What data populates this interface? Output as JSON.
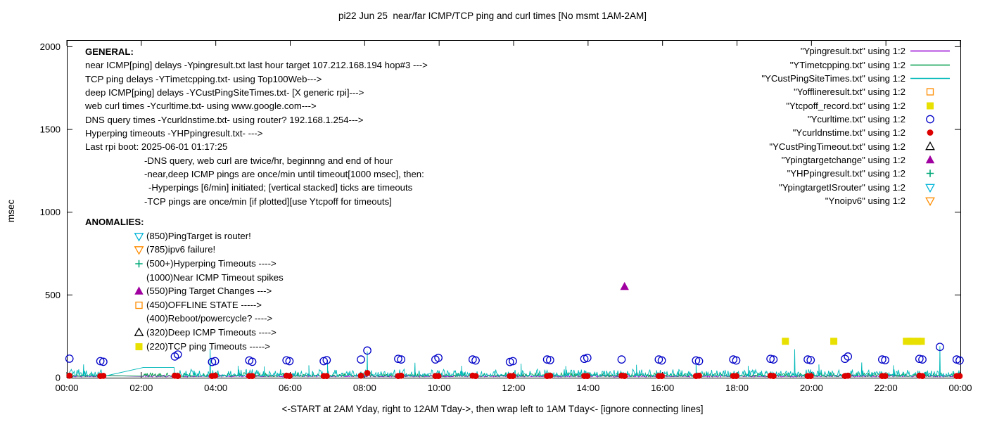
{
  "title": "pi22 Jun 25  near/far ICMP/TCP ping and curl times [No msmt 1AM-2AM]",
  "axes": {
    "ylabel": "msec",
    "xlabel": "<-START at 2AM Yday, right to 12AM Tday->, then wrap left to 1AM Tday<- [ignore connecting lines]",
    "x_ticks": [
      "00:00",
      "02:00",
      "04:00",
      "06:00",
      "08:00",
      "10:00",
      "12:00",
      "14:00",
      "16:00",
      "18:00",
      "20:00",
      "22:00",
      "00:00"
    ],
    "y_ticks": [
      "0",
      "500",
      "1000",
      "1500",
      "2000"
    ]
  },
  "general": {
    "header": "GENERAL:",
    "lines": [
      {
        "text": "near ICMP[ping] delays -Ypingresult.txt last hour target 107.212.168.194 hop#3 --->",
        "indent": 0
      },
      {
        "text": "TCP ping delays -YTimetcpping.txt- using Top100Web--->",
        "indent": 0
      },
      {
        "text": "deep ICMP[ping] delays -YCustPingSiteTimes.txt- [X generic rpi]--->",
        "indent": 0
      },
      {
        "text": "web curl times -Ycurltime.txt- using www.google.com--->",
        "indent": 0
      },
      {
        "text": "DNS query times -Ycurldnstime.txt- using router? 192.168.1.254--->",
        "indent": 0
      },
      {
        "text": "Hyperping timeouts -YHPpingresult.txt- --->",
        "indent": 0
      },
      {
        "text": "Last rpi boot: 2025-06-01 01:17:25",
        "indent": 0
      },
      {
        "text": "-DNS query, web curl are twice/hr, beginnng and end of hour",
        "indent": 1
      },
      {
        "text": "-near,deep ICMP pings are once/min until timeout[1000 msec], then:",
        "indent": 1
      },
      {
        "text": "-Hyperpings [6/min] initiated; [vertical stacked] ticks are timeouts",
        "indent": 2
      },
      {
        "text": "-TCP pings are once/min [if plotted][use Ytcpoff for timeouts]",
        "indent": 1
      }
    ]
  },
  "anomalies": {
    "header": "ANOMALIES:",
    "items": [
      {
        "marker": "triangle-down-open",
        "color": "#00b4d8",
        "text": "(850)PingTarget is router!"
      },
      {
        "marker": "triangle-down-open",
        "color": "#ff8c00",
        "text": "(785)ipv6 failure!"
      },
      {
        "marker": "plus",
        "color": "#00a878",
        "text": "(500+)Hyperping Timeouts ---->"
      },
      {
        "marker": null,
        "color": null,
        "text": "(1000)Near ICMP Timeout spikes"
      },
      {
        "marker": "triangle-up-filled",
        "color": "#a000a0",
        "text": "(550)Ping Target Changes --->"
      },
      {
        "marker": "square-open",
        "color": "#ff8c00",
        "text": "(450)OFFLINE STATE ----->"
      },
      {
        "marker": null,
        "color": null,
        "text": "(400)Reboot/powercycle? ---->"
      },
      {
        "marker": "triangle-up-open",
        "color": "#000000",
        "text": "(320)Deep ICMP Timeouts ---->"
      },
      {
        "marker": "square-filled",
        "color": "#e8e000",
        "text": "(220)TCP ping Timeouts ----->"
      }
    ]
  },
  "legend": [
    {
      "label": "\"Ypingresult.txt\" using 1:2",
      "sample": "line",
      "color": "#9400d3"
    },
    {
      "label": "\"YTimetcpping.txt\" using 1:2",
      "sample": "line",
      "color": "#009e49"
    },
    {
      "label": "\"YCustPingSiteTimes.txt\" using 1:2",
      "sample": "line",
      "color": "#00b8b8"
    },
    {
      "label": "\"Yofflineresult.txt\" using 1:2",
      "sample": "square-open",
      "color": "#ff8c00"
    },
    {
      "label": "\"Ytcpoff_record.txt\" using 1:2",
      "sample": "square-filled",
      "color": "#e8e000"
    },
    {
      "label": "\"Ycurltime.txt\" using 1:2",
      "sample": "circle-open",
      "color": "#0000c8"
    },
    {
      "label": "\"Ycurldnstime.txt\" using 1:2",
      "sample": "circle-filled",
      "color": "#dd0000"
    },
    {
      "label": "\"YCustPingTimeout.txt\" using 1:2",
      "sample": "triangle-up-open",
      "color": "#000000"
    },
    {
      "label": "\"Ypingtargetchange\" using 1:2",
      "sample": "triangle-up-filled",
      "color": "#a000a0"
    },
    {
      "label": "\"YHPpingresult.txt\" using 1:2",
      "sample": "plus",
      "color": "#00a878"
    },
    {
      "label": "\"YpingtargetISrouter\" using 1:2",
      "sample": "triangle-down-open",
      "color": "#00b4d8"
    },
    {
      "label": "\"Ynoipv6\" using 1:2",
      "sample": "triangle-down-open",
      "color": "#ff8c00"
    }
  ],
  "chart_data": {
    "type": "line",
    "title": "pi22 Jun 25  near/far ICMP/TCP ping and curl times [No msmt 1AM-2AM]",
    "xlabel": "<-START at 2AM Yday, right to 12AM Tday->, then wrap left to 1AM Tday<- [ignore connecting lines]",
    "ylabel": "msec",
    "xlim": [
      0,
      24
    ],
    "ylim": [
      0,
      2040
    ],
    "grid": false,
    "legend_position": "top-right",
    "x_tick_hours": [
      0,
      2,
      4,
      6,
      8,
      10,
      12,
      14,
      16,
      18,
      20,
      22,
      24
    ],
    "y_tick_values": [
      0,
      500,
      1000,
      1500,
      2000
    ],
    "gap_hours": [
      1.05,
      2.05
    ],
    "line_series": [
      {
        "name": "Ypingresult",
        "color": "#9400d3",
        "baseline": 4,
        "jitter": 10,
        "spikes": [],
        "plateaus": []
      },
      {
        "name": "YTimetcpping",
        "color": "#009e49",
        "baseline": 6,
        "jitter": 22,
        "spikes": [],
        "plateaus": []
      },
      {
        "name": "YCustPingSiteTimes",
        "color": "#00b8b8",
        "baseline": 8,
        "jitter": 40,
        "spikes": [
          [
            0.45,
            80
          ],
          [
            3.85,
            175
          ],
          [
            4.6,
            72
          ],
          [
            5.3,
            68
          ],
          [
            6.5,
            75
          ],
          [
            7.0,
            95
          ],
          [
            8.07,
            158
          ],
          [
            9.35,
            90
          ],
          [
            10.6,
            72
          ],
          [
            12.2,
            85
          ],
          [
            13.4,
            70
          ],
          [
            15.3,
            78
          ],
          [
            16.9,
            88
          ],
          [
            18.3,
            72
          ],
          [
            19.55,
            172
          ],
          [
            20.2,
            80
          ],
          [
            21.35,
            92
          ],
          [
            22.2,
            75
          ],
          [
            23.45,
            190
          ]
        ],
        "plateaus": [
          [
            2.05,
            2.9,
            62
          ]
        ]
      }
    ],
    "point_series": [
      {
        "name": "Ycurltime",
        "marker": "circle-open",
        "color": "#0000c8",
        "points": [
          [
            0.07,
            115
          ],
          [
            0.9,
            100
          ],
          [
            0.98,
            96
          ],
          [
            2.9,
            128
          ],
          [
            2.98,
            140
          ],
          [
            3.9,
            95
          ],
          [
            3.98,
            100
          ],
          [
            4.9,
            104
          ],
          [
            4.98,
            96
          ],
          [
            5.9,
            105
          ],
          [
            5.98,
            100
          ],
          [
            6.9,
            100
          ],
          [
            6.98,
            106
          ],
          [
            7.9,
            110
          ],
          [
            8.07,
            164
          ],
          [
            8.9,
            114
          ],
          [
            8.98,
            110
          ],
          [
            9.9,
            110
          ],
          [
            9.98,
            120
          ],
          [
            10.9,
            110
          ],
          [
            10.98,
            104
          ],
          [
            11.9,
            95
          ],
          [
            11.98,
            100
          ],
          [
            12.9,
            110
          ],
          [
            12.98,
            106
          ],
          [
            13.9,
            114
          ],
          [
            13.98,
            120
          ],
          [
            14.9,
            110
          ],
          [
            15.9,
            110
          ],
          [
            15.98,
            104
          ],
          [
            16.9,
            104
          ],
          [
            16.98,
            100
          ],
          [
            17.9,
            110
          ],
          [
            17.98,
            104
          ],
          [
            18.9,
            114
          ],
          [
            18.98,
            110
          ],
          [
            19.9,
            110
          ],
          [
            19.98,
            106
          ],
          [
            20.9,
            114
          ],
          [
            20.98,
            128
          ],
          [
            21.9,
            110
          ],
          [
            21.98,
            106
          ],
          [
            22.9,
            114
          ],
          [
            22.98,
            110
          ],
          [
            23.45,
            186
          ],
          [
            23.9,
            110
          ],
          [
            23.98,
            104
          ]
        ]
      },
      {
        "name": "Ycurldnstime",
        "marker": "circle-filled",
        "color": "#dd0000",
        "points": [
          [
            0.07,
            12
          ],
          [
            0.9,
            10
          ],
          [
            0.98,
            11
          ],
          [
            2.9,
            12
          ],
          [
            2.98,
            10
          ],
          [
            3.9,
            10
          ],
          [
            3.98,
            12
          ],
          [
            4.9,
            10
          ],
          [
            4.98,
            10
          ],
          [
            5.9,
            12
          ],
          [
            5.98,
            10
          ],
          [
            6.9,
            10
          ],
          [
            6.98,
            10
          ],
          [
            7.9,
            12
          ],
          [
            8.07,
            28
          ],
          [
            8.9,
            10
          ],
          [
            8.98,
            12
          ],
          [
            9.9,
            10
          ],
          [
            9.98,
            10
          ],
          [
            10.9,
            12
          ],
          [
            10.98,
            10
          ],
          [
            11.9,
            10
          ],
          [
            11.98,
            10
          ],
          [
            12.9,
            10
          ],
          [
            12.98,
            12
          ],
          [
            13.9,
            10
          ],
          [
            13.98,
            10
          ],
          [
            14.9,
            12
          ],
          [
            14.98,
            10
          ],
          [
            15.9,
            10
          ],
          [
            15.98,
            10
          ],
          [
            16.9,
            10
          ],
          [
            16.98,
            12
          ],
          [
            17.9,
            10
          ],
          [
            17.98,
            10
          ],
          [
            18.9,
            12
          ],
          [
            18.98,
            10
          ],
          [
            19.9,
            10
          ],
          [
            19.98,
            10
          ],
          [
            20.9,
            10
          ],
          [
            20.98,
            12
          ],
          [
            21.9,
            10
          ],
          [
            21.98,
            10
          ],
          [
            22.9,
            12
          ],
          [
            22.98,
            10
          ],
          [
            23.9,
            10
          ],
          [
            23.98,
            10
          ]
        ]
      },
      {
        "name": "Ytcpoff_record",
        "marker": "square-filled",
        "color": "#e8e000",
        "points": [
          [
            19.3,
            220
          ],
          [
            20.6,
            220
          ],
          [
            22.55,
            220
          ],
          [
            22.65,
            220
          ],
          [
            22.75,
            220
          ],
          [
            22.85,
            220
          ],
          [
            22.95,
            220
          ]
        ]
      },
      {
        "name": "Ypingtargetchange",
        "marker": "triangle-up-filled",
        "color": "#a000a0",
        "points": [
          [
            14.98,
            550
          ]
        ]
      }
    ]
  }
}
